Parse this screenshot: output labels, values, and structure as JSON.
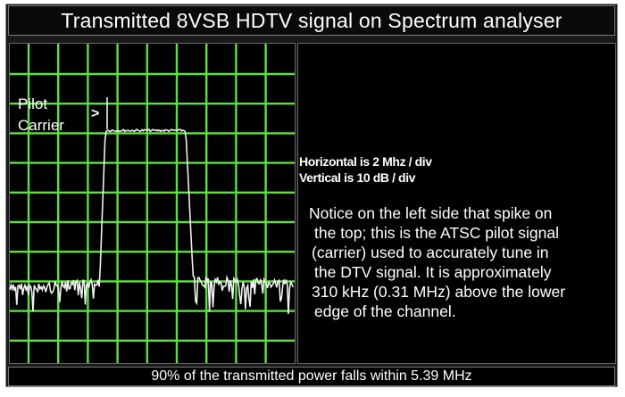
{
  "title": "Transmitted 8VSB HDTV signal on Spectrum analyser",
  "graph": {
    "pilot_label_line1": "Pilot",
    "pilot_label_line2": "Carrier",
    "arrow": ">",
    "grid_color": "#5fe040",
    "trace_color": "#f0f0f0"
  },
  "info": {
    "horizontal_scale": "Horizontal is 2 Mhz / div",
    "vertical_scale": "Vertical is 10 dB / div",
    "note_lines": [
      "Notice on the left side that spike on",
      "the top; this is the ATSC pilot signal",
      "(carrier) used to accurately tune in",
      "the DTV signal. It is approximately",
      "310 kHz (0.31 MHz) above the lower",
      "edge of the channel."
    ]
  },
  "caption": "90% of the transmitted power falls within 5.39 MHz"
}
